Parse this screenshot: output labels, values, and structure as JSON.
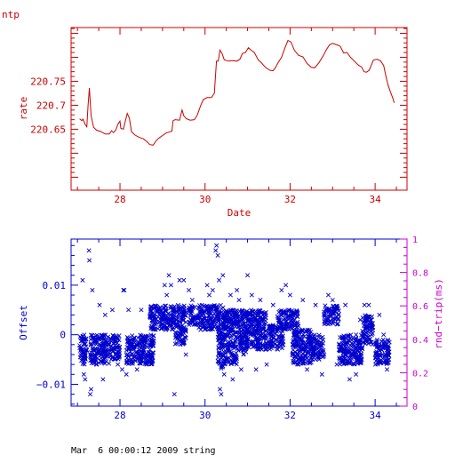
{
  "chart_data": [
    {
      "type": "line",
      "corner_label": "ntp",
      "xlabel": "Date",
      "ylabel": "rate",
      "xlim": [
        26.85,
        34.75
      ],
      "ylim": [
        220.523,
        220.862
      ],
      "x_ticks": [
        "28",
        "30",
        "32",
        "34"
      ],
      "y_ticks": [
        "220.65",
        "220.7",
        "220.75"
      ],
      "colors": {
        "axis": "#cc0000",
        "line": "#cc0000"
      },
      "series": [
        {
          "points": [
            [
              27.05,
              220.672
            ],
            [
              27.1,
              220.668
            ],
            [
              27.13,
              220.671
            ],
            [
              27.18,
              220.66
            ],
            [
              27.22,
              220.655
            ],
            [
              27.25,
              220.7
            ],
            [
              27.28,
              220.736
            ],
            [
              27.32,
              220.678
            ],
            [
              27.38,
              220.654
            ],
            [
              27.45,
              220.648
            ],
            [
              27.55,
              220.645
            ],
            [
              27.65,
              220.64
            ],
            [
              27.75,
              220.64
            ],
            [
              27.8,
              220.647
            ],
            [
              27.85,
              220.643
            ],
            [
              27.9,
              220.648
            ],
            [
              27.95,
              220.66
            ],
            [
              28.0,
              220.667
            ],
            [
              28.02,
              220.652
            ],
            [
              28.08,
              220.65
            ],
            [
              28.12,
              220.665
            ],
            [
              28.17,
              220.683
            ],
            [
              28.22,
              220.673
            ],
            [
              28.27,
              220.645
            ],
            [
              28.35,
              220.638
            ],
            [
              28.45,
              220.633
            ],
            [
              28.55,
              220.63
            ],
            [
              28.62,
              220.625
            ],
            [
              28.7,
              220.618
            ],
            [
              28.78,
              220.617
            ],
            [
              28.85,
              220.626
            ],
            [
              28.92,
              220.632
            ],
            [
              29.0,
              220.637
            ],
            [
              29.08,
              220.642
            ],
            [
              29.15,
              220.644
            ],
            [
              29.22,
              220.646
            ],
            [
              29.25,
              220.668
            ],
            [
              29.3,
              220.67
            ],
            [
              29.4,
              220.669
            ],
            [
              29.46,
              220.69
            ],
            [
              29.5,
              220.678
            ],
            [
              29.56,
              220.672
            ],
            [
              29.65,
              220.669
            ],
            [
              29.75,
              220.67
            ],
            [
              29.82,
              220.68
            ],
            [
              29.9,
              220.7
            ],
            [
              29.96,
              220.712
            ],
            [
              30.05,
              220.716
            ],
            [
              30.15,
              220.716
            ],
            [
              30.22,
              220.725
            ],
            [
              30.27,
              220.792
            ],
            [
              30.31,
              220.792
            ],
            [
              30.35,
              220.815
            ],
            [
              30.4,
              220.808
            ],
            [
              30.45,
              220.795
            ],
            [
              30.55,
              220.792
            ],
            [
              30.65,
              220.793
            ],
            [
              30.75,
              220.792
            ],
            [
              30.82,
              220.796
            ],
            [
              30.88,
              220.808
            ],
            [
              30.95,
              220.81
            ],
            [
              31.02,
              220.82
            ],
            [
              31.08,
              220.815
            ],
            [
              31.16,
              220.81
            ],
            [
              31.25,
              220.795
            ],
            [
              31.32,
              220.789
            ],
            [
              31.42,
              220.779
            ],
            [
              31.52,
              220.773
            ],
            [
              31.6,
              220.772
            ],
            [
              31.66,
              220.779
            ],
            [
              31.72,
              220.789
            ],
            [
              31.8,
              220.8
            ],
            [
              31.88,
              220.82
            ],
            [
              31.95,
              220.835
            ],
            [
              32.02,
              220.832
            ],
            [
              32.1,
              220.815
            ],
            [
              32.2,
              220.804
            ],
            [
              32.3,
              220.801
            ],
            [
              32.4,
              220.787
            ],
            [
              32.5,
              220.779
            ],
            [
              32.58,
              220.778
            ],
            [
              32.68,
              220.789
            ],
            [
              32.78,
              220.803
            ],
            [
              32.86,
              220.817
            ],
            [
              32.93,
              220.826
            ],
            [
              33.0,
              220.829
            ],
            [
              33.1,
              220.826
            ],
            [
              33.18,
              220.823
            ],
            [
              33.26,
              220.809
            ],
            [
              33.34,
              220.81
            ],
            [
              33.42,
              220.8
            ],
            [
              33.5,
              220.793
            ],
            [
              33.6,
              220.784
            ],
            [
              33.68,
              220.78
            ],
            [
              33.74,
              220.77
            ],
            [
              33.8,
              220.769
            ],
            [
              33.86,
              220.773
            ],
            [
              33.9,
              220.781
            ],
            [
              33.96,
              220.794
            ],
            [
              34.04,
              220.796
            ],
            [
              34.12,
              220.793
            ],
            [
              34.2,
              220.783
            ],
            [
              34.25,
              220.762
            ],
            [
              34.3,
              220.743
            ],
            [
              34.36,
              220.728
            ],
            [
              34.42,
              220.714
            ],
            [
              34.45,
              220.705
            ]
          ]
        }
      ]
    },
    {
      "type": "scatter",
      "xlabel": "",
      "ylabel": "Offset",
      "ylabel_right": "rnd−trip(ms)",
      "xlim": [
        26.85,
        34.75
      ],
      "ylim": [
        -0.0144,
        0.0193
      ],
      "ylim_right": [
        0,
        1
      ],
      "x_ticks": [
        "28",
        "30",
        "32",
        "34"
      ],
      "y_ticks": [
        "−0.01",
        "0",
        "0.01"
      ],
      "y_ticks_right": [
        "0",
        "0.2",
        "0.4",
        "0.6",
        "0.8",
        "1"
      ],
      "marker": "x",
      "colors": {
        "axis": "#0000cc",
        "points": "#0000cc",
        "right_axis": "#cc00cc"
      },
      "segments": [
        {
          "x": [
            27.05,
            27.22
          ],
          "y": [
            -0.006,
            0.0
          ]
        },
        {
          "x": [
            27.3,
            27.75
          ],
          "y": [
            -0.006,
            0.0
          ]
        },
        {
          "x": [
            27.75,
            28.0
          ],
          "y": [
            -0.005,
            0.0
          ]
        },
        {
          "x": [
            28.15,
            28.8
          ],
          "y": [
            -0.006,
            0.0
          ]
        },
        {
          "x": [
            28.7,
            29.3
          ],
          "y": [
            0.001,
            0.006
          ]
        },
        {
          "x": [
            29.3,
            29.55
          ],
          "y": [
            -0.002,
            0.006
          ]
        },
        {
          "x": [
            29.6,
            29.85
          ],
          "y": [
            0.002,
            0.006
          ]
        },
        {
          "x": [
            29.85,
            30.3
          ],
          "y": [
            0.001,
            0.006
          ]
        },
        {
          "x": [
            30.3,
            30.45
          ],
          "y": [
            -0.007,
            0.006
          ]
        },
        {
          "x": [
            30.45,
            30.75
          ],
          "y": [
            -0.006,
            0.005
          ]
        },
        {
          "x": [
            30.75,
            31.0
          ],
          "y": [
            -0.004,
            0.005
          ]
        },
        {
          "x": [
            31.0,
            31.45
          ],
          "y": [
            -0.003,
            0.005
          ]
        },
        {
          "x": [
            31.5,
            31.85
          ],
          "y": [
            -0.003,
            0.002
          ]
        },
        {
          "x": [
            31.7,
            32.2
          ],
          "y": [
            0.001,
            0.005
          ]
        },
        {
          "x": [
            32.05,
            32.5
          ],
          "y": [
            -0.006,
            0.001
          ]
        },
        {
          "x": [
            32.5,
            32.8
          ],
          "y": [
            -0.005,
            0.0
          ]
        },
        {
          "x": [
            32.8,
            33.15
          ],
          "y": [
            0.002,
            0.006
          ]
        },
        {
          "x": [
            33.15,
            33.7
          ],
          "y": [
            -0.006,
            0.0
          ]
        },
        {
          "x": [
            33.7,
            33.95
          ],
          "y": [
            -0.002,
            0.004
          ]
        },
        {
          "x": [
            34.0,
            34.35
          ],
          "y": [
            -0.006,
            -0.001
          ]
        }
      ],
      "points": [
        [
          27.12,
          0.011
        ],
        [
          27.15,
          -0.008
        ],
        [
          27.18,
          -0.009
        ],
        [
          27.27,
          0.017
        ],
        [
          27.28,
          0.015
        ],
        [
          27.3,
          -0.012
        ],
        [
          27.32,
          -0.011
        ],
        [
          27.35,
          0.009
        ],
        [
          27.4,
          -0.004
        ],
        [
          27.45,
          -0.003
        ],
        [
          27.52,
          0.006
        ],
        [
          27.6,
          -0.009
        ],
        [
          27.65,
          0.004
        ],
        [
          27.82,
          0.005
        ],
        [
          27.95,
          -0.006
        ],
        [
          28.05,
          -0.007
        ],
        [
          28.08,
          0.009
        ],
        [
          28.1,
          0.009
        ],
        [
          28.15,
          -0.008
        ],
        [
          28.2,
          0.005
        ],
        [
          28.4,
          -0.007
        ],
        [
          28.5,
          0.005
        ],
        [
          28.6,
          -0.005
        ],
        [
          29.05,
          0.01
        ],
        [
          29.1,
          0.008
        ],
        [
          29.15,
          0.012
        ],
        [
          29.2,
          0.01
        ],
        [
          29.28,
          -0.012
        ],
        [
          29.4,
          0.011
        ],
        [
          29.5,
          0.011
        ],
        [
          29.55,
          -0.004
        ],
        [
          29.62,
          0.009
        ],
        [
          29.7,
          0.007
        ],
        [
          30.05,
          0.01
        ],
        [
          30.1,
          0.008
        ],
        [
          30.18,
          0.009
        ],
        [
          30.25,
          0.017
        ],
        [
          30.27,
          0.018
        ],
        [
          30.3,
          0.016
        ],
        [
          30.33,
          0.011
        ],
        [
          30.35,
          -0.011
        ],
        [
          30.38,
          -0.012
        ],
        [
          30.42,
          0.012
        ],
        [
          30.45,
          -0.008
        ],
        [
          30.6,
          0.008
        ],
        [
          30.65,
          -0.009
        ],
        [
          30.75,
          0.009
        ],
        [
          30.8,
          0.007
        ],
        [
          30.85,
          -0.007
        ],
        [
          31.0,
          0.012
        ],
        [
          31.1,
          0.008
        ],
        [
          31.2,
          -0.007
        ],
        [
          31.3,
          0.007
        ],
        [
          31.45,
          -0.006
        ],
        [
          31.6,
          0.006
        ],
        [
          31.8,
          0.009
        ],
        [
          31.9,
          0.01
        ],
        [
          32.0,
          0.008
        ],
        [
          32.2,
          -0.006
        ],
        [
          32.3,
          0.007
        ],
        [
          32.4,
          -0.007
        ],
        [
          32.6,
          0.006
        ],
        [
          32.75,
          -0.008
        ],
        [
          32.9,
          0.008
        ],
        [
          33.0,
          0.007
        ],
        [
          33.1,
          -0.006
        ],
        [
          33.3,
          0.006
        ],
        [
          33.4,
          -0.009
        ],
        [
          33.55,
          -0.008
        ],
        [
          33.65,
          0.003
        ],
        [
          33.75,
          0.006
        ],
        [
          33.85,
          0.006
        ],
        [
          34.05,
          -0.005
        ],
        [
          34.1,
          0.004
        ],
        [
          34.2,
          0.0
        ],
        [
          34.28,
          -0.007
        ]
      ]
    }
  ],
  "footer": {
    "text": "Mar  6 00:00:12 2009 string"
  }
}
